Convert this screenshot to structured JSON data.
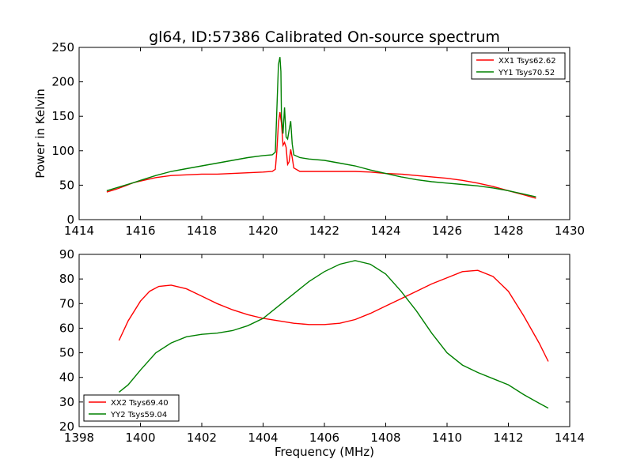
{
  "figure_title": "gl64, ID:57386 Calibrated On-source spectrum",
  "chart_data": [
    {
      "type": "line",
      "title": "gl64, ID:57386 Calibrated On-source spectrum",
      "xlabel": "",
      "ylabel": "Power in Kelvin",
      "xlim": [
        1414,
        1430
      ],
      "ylim": [
        0,
        250
      ],
      "xticks": [
        1414,
        1416,
        1418,
        1420,
        1422,
        1424,
        1426,
        1428,
        1430
      ],
      "yticks": [
        0,
        50,
        100,
        150,
        200,
        250
      ],
      "legend_position": "top-right",
      "series": [
        {
          "name": "XX1 Tsys62.62",
          "color": "#ff0000",
          "points": [
            [
              1414.9,
              40
            ],
            [
              1415.2,
              44
            ],
            [
              1415.5,
              49
            ],
            [
              1415.8,
              54
            ],
            [
              1416.0,
              56
            ],
            [
              1416.5,
              61
            ],
            [
              1417.0,
              64
            ],
            [
              1417.5,
              65
            ],
            [
              1418.0,
              66
            ],
            [
              1418.5,
              66
            ],
            [
              1419.0,
              67
            ],
            [
              1419.5,
              68
            ],
            [
              1420.0,
              69
            ],
            [
              1420.3,
              70
            ],
            [
              1420.4,
              73
            ],
            [
              1420.45,
              100
            ],
            [
              1420.5,
              140
            ],
            [
              1420.55,
              156
            ],
            [
              1420.6,
              140
            ],
            [
              1420.65,
              108
            ],
            [
              1420.7,
              112
            ],
            [
              1420.75,
              105
            ],
            [
              1420.8,
              80
            ],
            [
              1420.85,
              84
            ],
            [
              1420.9,
              102
            ],
            [
              1420.95,
              90
            ],
            [
              1421.0,
              75
            ],
            [
              1421.2,
              70
            ],
            [
              1422.0,
              70
            ],
            [
              1423.0,
              70
            ],
            [
              1423.5,
              69
            ],
            [
              1424.0,
              67
            ],
            [
              1424.5,
              66
            ],
            [
              1425.0,
              64
            ],
            [
              1425.5,
              62
            ],
            [
              1426.0,
              60
            ],
            [
              1426.5,
              57
            ],
            [
              1427.0,
              53
            ],
            [
              1427.5,
              48
            ],
            [
              1428.0,
              42
            ],
            [
              1428.5,
              36
            ],
            [
              1428.9,
              31
            ]
          ]
        },
        {
          "name": "YY1 Tsys70.52",
          "color": "#008000",
          "points": [
            [
              1414.9,
              42
            ],
            [
              1415.2,
              46
            ],
            [
              1415.5,
              50
            ],
            [
              1415.8,
              54
            ],
            [
              1416.0,
              57
            ],
            [
              1416.5,
              64
            ],
            [
              1417.0,
              70
            ],
            [
              1417.5,
              74
            ],
            [
              1418.0,
              78
            ],
            [
              1418.5,
              82
            ],
            [
              1419.0,
              86
            ],
            [
              1419.5,
              90
            ],
            [
              1420.0,
              93
            ],
            [
              1420.3,
              94
            ],
            [
              1420.4,
              98
            ],
            [
              1420.45,
              160
            ],
            [
              1420.5,
              225
            ],
            [
              1420.55,
              236
            ],
            [
              1420.58,
              215
            ],
            [
              1420.6,
              150
            ],
            [
              1420.65,
              125
            ],
            [
              1420.7,
              163
            ],
            [
              1420.75,
              120
            ],
            [
              1420.8,
              117
            ],
            [
              1420.85,
              130
            ],
            [
              1420.9,
              143
            ],
            [
              1420.95,
              110
            ],
            [
              1421.0,
              94
            ],
            [
              1421.2,
              90
            ],
            [
              1421.5,
              88
            ],
            [
              1422.0,
              86
            ],
            [
              1422.5,
              82
            ],
            [
              1423.0,
              78
            ],
            [
              1423.5,
              72
            ],
            [
              1424.0,
              67
            ],
            [
              1424.5,
              62
            ],
            [
              1425.0,
              58
            ],
            [
              1425.5,
              55
            ],
            [
              1426.0,
              53
            ],
            [
              1426.5,
              51
            ],
            [
              1427.0,
              49
            ],
            [
              1427.5,
              46
            ],
            [
              1428.0,
              42
            ],
            [
              1428.5,
              37
            ],
            [
              1428.9,
              33
            ]
          ]
        }
      ]
    },
    {
      "type": "line",
      "title": "",
      "xlabel": "Frequency (MHz)",
      "ylabel": "",
      "xlim": [
        1398,
        1414
      ],
      "ylim": [
        20,
        90
      ],
      "xticks": [
        1398,
        1400,
        1402,
        1404,
        1406,
        1408,
        1410,
        1412,
        1414
      ],
      "yticks": [
        20,
        30,
        40,
        50,
        60,
        70,
        80,
        90
      ],
      "legend_position": "bottom-left",
      "series": [
        {
          "name": "XX2 Tsys69.40",
          "color": "#ff0000",
          "points": [
            [
              1399.3,
              55
            ],
            [
              1399.6,
              63
            ],
            [
              1400.0,
              71
            ],
            [
              1400.3,
              75
            ],
            [
              1400.6,
              77
            ],
            [
              1401.0,
              77.5
            ],
            [
              1401.5,
              76
            ],
            [
              1402.0,
              73
            ],
            [
              1402.5,
              70
            ],
            [
              1403.0,
              67.5
            ],
            [
              1403.5,
              65.5
            ],
            [
              1404.0,
              64
            ],
            [
              1404.5,
              63
            ],
            [
              1405.0,
              62
            ],
            [
              1405.5,
              61.5
            ],
            [
              1406.0,
              61.5
            ],
            [
              1406.5,
              62
            ],
            [
              1407.0,
              63.5
            ],
            [
              1407.5,
              66
            ],
            [
              1408.0,
              69
            ],
            [
              1408.5,
              72
            ],
            [
              1409.0,
              75
            ],
            [
              1409.5,
              78
            ],
            [
              1410.0,
              80.5
            ],
            [
              1410.5,
              83
            ],
            [
              1411.0,
              83.5
            ],
            [
              1411.5,
              81
            ],
            [
              1412.0,
              75
            ],
            [
              1412.5,
              65
            ],
            [
              1413.0,
              54
            ],
            [
              1413.3,
              46.5
            ]
          ]
        },
        {
          "name": "YY2 Tsys59.04",
          "color": "#008000",
          "points": [
            [
              1399.3,
              34
            ],
            [
              1399.6,
              37
            ],
            [
              1400.0,
              43
            ],
            [
              1400.5,
              50
            ],
            [
              1401.0,
              54
            ],
            [
              1401.5,
              56.5
            ],
            [
              1402.0,
              57.5
            ],
            [
              1402.5,
              58
            ],
            [
              1403.0,
              59
            ],
            [
              1403.5,
              61
            ],
            [
              1404.0,
              64
            ],
            [
              1404.5,
              69
            ],
            [
              1405.0,
              74
            ],
            [
              1405.5,
              79
            ],
            [
              1406.0,
              83
            ],
            [
              1406.5,
              86
            ],
            [
              1407.0,
              87.5
            ],
            [
              1407.5,
              86
            ],
            [
              1408.0,
              82
            ],
            [
              1408.5,
              75
            ],
            [
              1409.0,
              67
            ],
            [
              1409.5,
              58
            ],
            [
              1410.0,
              50
            ],
            [
              1410.5,
              45
            ],
            [
              1411.0,
              42
            ],
            [
              1411.5,
              39.5
            ],
            [
              1412.0,
              37
            ],
            [
              1412.5,
              33
            ],
            [
              1413.0,
              29.5
            ],
            [
              1413.3,
              27.5
            ]
          ]
        }
      ]
    }
  ]
}
